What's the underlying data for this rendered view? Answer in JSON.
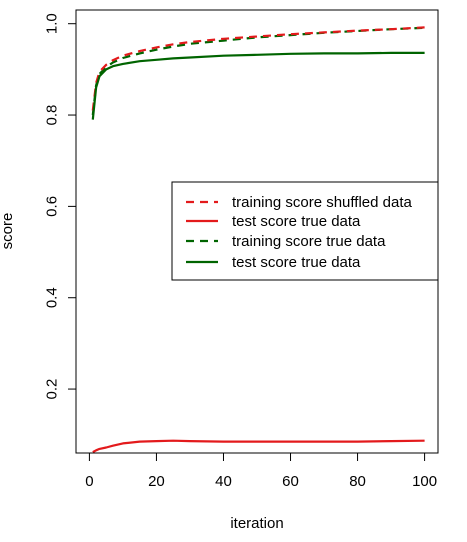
{
  "chart_data": {
    "type": "line",
    "title": "",
    "xlabel": "iteration",
    "ylabel": "score",
    "xlim": [
      -4,
      104
    ],
    "ylim": [
      0.06,
      1.03
    ],
    "xticks": [
      0,
      20,
      40,
      60,
      80,
      100
    ],
    "xtick_labels": [
      "0",
      "20",
      "40",
      "60",
      "80",
      "100"
    ],
    "yticks": [
      0.2,
      0.4,
      0.6,
      0.8,
      1.0
    ],
    "ytick_labels": [
      "0.2",
      "0.4",
      "0.6",
      "0.8",
      "1.0"
    ],
    "grid": false,
    "legend_position": "right",
    "series": [
      {
        "name": "training score shuffled data",
        "color": "#e31a1c",
        "dash": "dashed",
        "x": [
          1,
          2,
          3,
          5,
          7,
          10,
          15,
          20,
          25,
          30,
          40,
          50,
          60,
          70,
          80,
          90,
          100
        ],
        "y": [
          0.81,
          0.87,
          0.895,
          0.91,
          0.92,
          0.93,
          0.94,
          0.948,
          0.955,
          0.96,
          0.967,
          0.972,
          0.977,
          0.981,
          0.985,
          0.988,
          0.992
        ]
      },
      {
        "name": "test score true data",
        "color": "#e31a1c",
        "dash": "solid",
        "x": [
          1,
          2,
          3,
          5,
          7,
          10,
          15,
          20,
          25,
          30,
          40,
          50,
          60,
          70,
          80,
          90,
          100
        ],
        "y": [
          0.062,
          0.066,
          0.069,
          0.072,
          0.076,
          0.081,
          0.085,
          0.086,
          0.087,
          0.086,
          0.085,
          0.085,
          0.085,
          0.085,
          0.085,
          0.086,
          0.087
        ]
      },
      {
        "name": "training score true data",
        "color": "#006400",
        "dash": "dashed",
        "x": [
          1,
          2,
          3,
          5,
          7,
          10,
          15,
          20,
          25,
          30,
          40,
          50,
          60,
          70,
          80,
          90,
          100
        ],
        "y": [
          0.8,
          0.865,
          0.89,
          0.905,
          0.915,
          0.925,
          0.935,
          0.943,
          0.95,
          0.956,
          0.963,
          0.97,
          0.975,
          0.98,
          0.984,
          0.988,
          0.991
        ]
      },
      {
        "name": "test score true data",
        "color": "#006400",
        "dash": "solid",
        "x": [
          1,
          2,
          3,
          5,
          7,
          10,
          15,
          20,
          25,
          30,
          40,
          50,
          60,
          70,
          80,
          90,
          100
        ],
        "y": [
          0.79,
          0.86,
          0.885,
          0.9,
          0.907,
          0.912,
          0.918,
          0.921,
          0.924,
          0.926,
          0.93,
          0.932,
          0.934,
          0.935,
          0.935,
          0.936,
          0.936
        ]
      }
    ]
  }
}
